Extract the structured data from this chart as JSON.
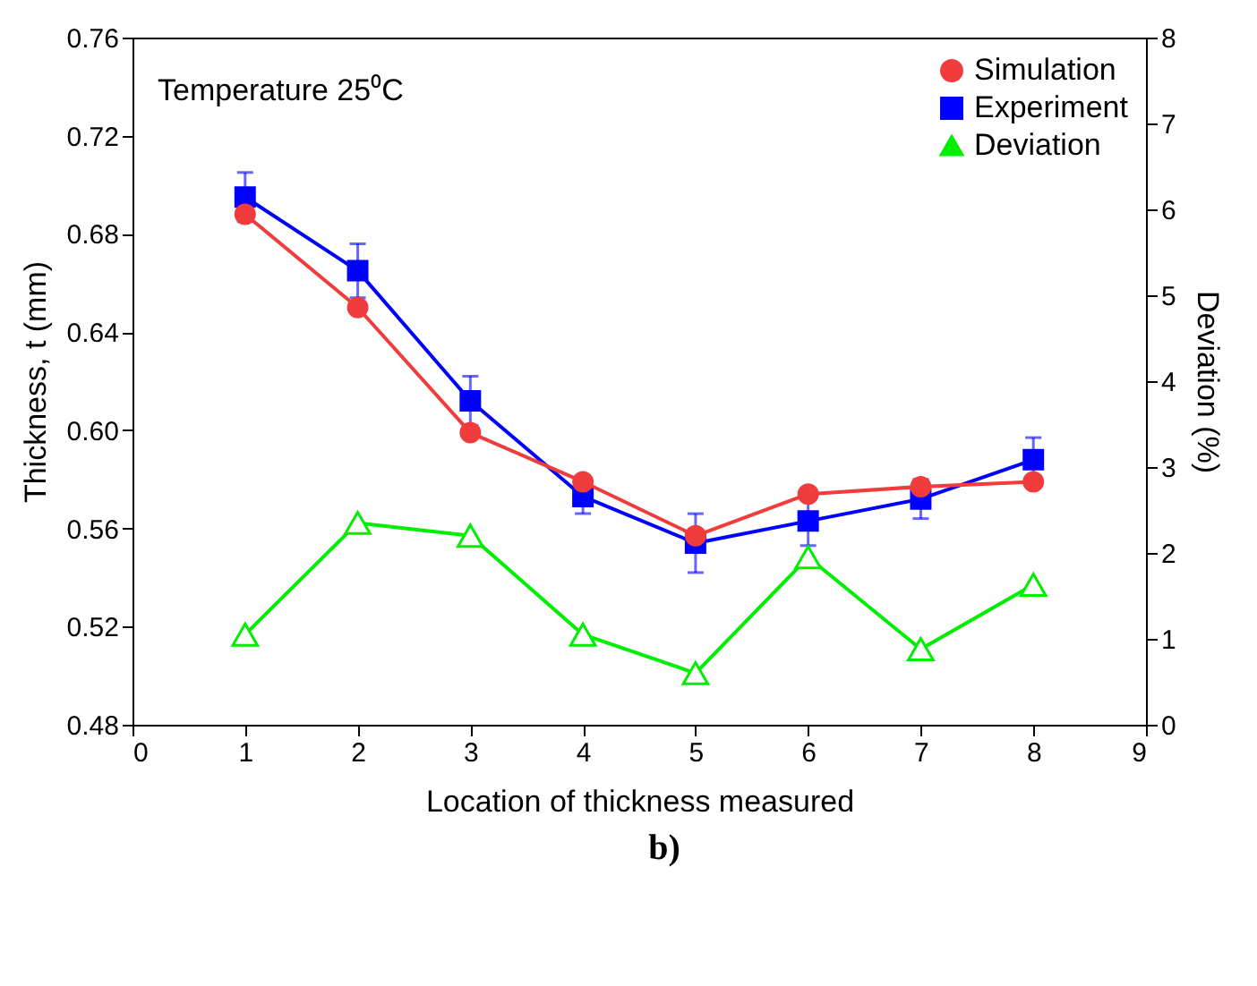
{
  "chart_data": {
    "type": "line",
    "xlabel": "Location of thickness measured",
    "ylabel": "Thickness, t (mm)",
    "y2label": "Deviation (%)",
    "annotations": [
      "Temperature 25⁰C",
      "b)"
    ],
    "x": [
      1,
      2,
      3,
      4,
      5,
      6,
      7,
      8
    ],
    "xlim": [
      0,
      9
    ],
    "xticks": [
      0,
      1,
      2,
      3,
      4,
      5,
      6,
      7,
      8,
      9
    ],
    "ylim": [
      0.48,
      0.76
    ],
    "yticks": [
      0.48,
      0.52,
      0.56,
      {
        "value": 0.6,
        "label": "0.60"
      },
      0.64,
      0.68,
      0.72,
      0.76
    ],
    "y2lim": [
      0,
      8
    ],
    "y2ticks": [
      0,
      1,
      2,
      3,
      4,
      5,
      6,
      7,
      8
    ],
    "grid": false,
    "legend": "top right",
    "series": [
      {
        "name": "Simulation",
        "color": "#f03c3c",
        "marker": "circle",
        "values": [
          0.688,
          0.65,
          0.599,
          0.579,
          0.557,
          0.574,
          0.577,
          0.579
        ]
      },
      {
        "name": "Experiment",
        "color": "#0000ff",
        "marker": "square",
        "values": [
          0.695,
          0.665,
          0.612,
          0.573,
          0.554,
          0.563,
          0.572,
          0.588
        ],
        "errors": [
          0.01,
          0.011,
          0.01,
          0.007,
          0.012,
          0.01,
          0.008,
          0.009
        ]
      },
      {
        "name": "Deviation",
        "color": "#00ee00",
        "marker": "triangle",
        "axis": "y2",
        "values": [
          1.05,
          2.35,
          2.2,
          1.05,
          0.6,
          1.95,
          0.88,
          1.63
        ]
      }
    ]
  }
}
